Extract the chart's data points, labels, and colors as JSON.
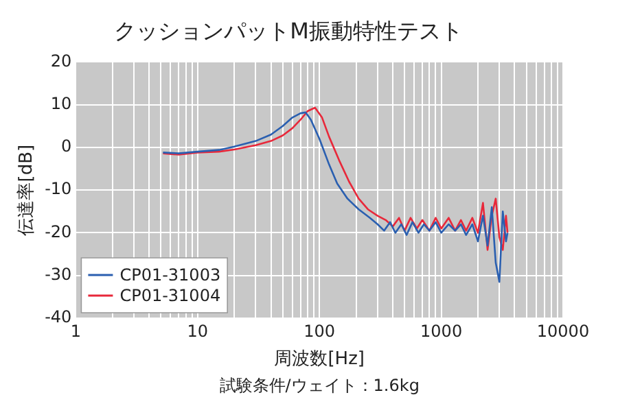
{
  "chart_data": {
    "type": "line",
    "title": "クッションパットM振動特性テスト",
    "xlabel": "周波数[Hz]",
    "ylabel": "伝達率[dB]",
    "annotations": [
      "試験条件/ウェイト：1.6kg"
    ],
    "log": "x",
    "grid": true,
    "legend": "bottom left",
    "marker": "none",
    "xlim": [
      1,
      10000
    ],
    "xticks": [
      1,
      {
        "value": 2,
        "label": null
      },
      {
        "value": 3,
        "label": null
      },
      {
        "value": 4,
        "label": null
      },
      {
        "value": 5,
        "label": null
      },
      {
        "value": 6,
        "label": null
      },
      {
        "value": 7,
        "label": null
      },
      {
        "value": 8,
        "label": null
      },
      {
        "value": 9,
        "label": null
      },
      10,
      {
        "value": 20,
        "label": null
      },
      {
        "value": 30,
        "label": null
      },
      {
        "value": 40,
        "label": null
      },
      {
        "value": 50,
        "label": null
      },
      {
        "value": 60,
        "label": null
      },
      {
        "value": 70,
        "label": null
      },
      {
        "value": 80,
        "label": null
      },
      {
        "value": 90,
        "label": null
      },
      100,
      {
        "value": 200,
        "label": null
      },
      {
        "value": 300,
        "label": null
      },
      {
        "value": 400,
        "label": null
      },
      {
        "value": 500,
        "label": null
      },
      {
        "value": 600,
        "label": null
      },
      {
        "value": 700,
        "label": null
      },
      {
        "value": 800,
        "label": null
      },
      {
        "value": 900,
        "label": null
      },
      1000,
      {
        "value": 2000,
        "label": null
      },
      {
        "value": 3000,
        "label": null
      },
      {
        "value": 4000,
        "label": null
      },
      {
        "value": 5000,
        "label": null
      },
      {
        "value": 6000,
        "label": null
      },
      {
        "value": 7000,
        "label": null
      },
      {
        "value": 8000,
        "label": null
      },
      {
        "value": 9000,
        "label": null
      },
      10000
    ],
    "ylim": [
      -40,
      20
    ],
    "yticks": [
      -40,
      -30,
      -20,
      -10,
      0,
      10,
      20
    ],
    "series": [
      {
        "name": "CP01-31003",
        "color": "#2a5fb0",
        "x": [
          5.2,
          7,
          10,
          15,
          20,
          30,
          40,
          50,
          60,
          70,
          77,
          85,
          100,
          120,
          140,
          170,
          210,
          260,
          300,
          340,
          380,
          420,
          470,
          520,
          580,
          650,
          720,
          800,
          900,
          1000,
          1150,
          1300,
          1450,
          1600,
          1800,
          2000,
          2200,
          2400,
          2600,
          2800,
          3000,
          3200,
          3400,
          3500
        ],
        "values": [
          -1.2,
          -1.4,
          -1,
          -0.6,
          0.2,
          1.5,
          3,
          5,
          7,
          8,
          8.2,
          6.5,
          2,
          -4,
          -8.5,
          -12,
          -14.5,
          -16.5,
          -18,
          -19.5,
          -17.5,
          -20,
          -18,
          -20.5,
          -17.5,
          -20,
          -18,
          -19.5,
          -17.5,
          -20,
          -18,
          -19.5,
          -18,
          -20.5,
          -18,
          -22,
          -16,
          -23,
          -14,
          -27,
          -31.5,
          -15,
          -22,
          -20
        ]
      },
      {
        "name": "CP01-31004",
        "color": "#e8283a",
        "x": [
          5.2,
          7,
          10,
          15,
          20,
          30,
          40,
          50,
          60,
          70,
          80,
          92,
          105,
          120,
          145,
          175,
          210,
          250,
          300,
          350,
          400,
          450,
          500,
          560,
          630,
          700,
          800,
          900,
          1000,
          1150,
          1300,
          1450,
          1600,
          1800,
          2000,
          2200,
          2400,
          2600,
          2800,
          3000,
          3200,
          3400,
          3500
        ],
        "values": [
          -1.4,
          -1.7,
          -1.2,
          -1,
          -0.5,
          0.5,
          1.5,
          2.8,
          4.5,
          6.5,
          8.5,
          9.3,
          7,
          2.5,
          -3,
          -8,
          -12,
          -14.5,
          -16,
          -17,
          -18.5,
          -16.5,
          -19.5,
          -16.5,
          -19,
          -17,
          -19.5,
          -16.5,
          -19,
          -16.5,
          -19.5,
          -17,
          -19.5,
          -16.5,
          -20,
          -13,
          -24,
          -16,
          -12,
          -21,
          -24,
          -16,
          -20
        ]
      }
    ]
  }
}
